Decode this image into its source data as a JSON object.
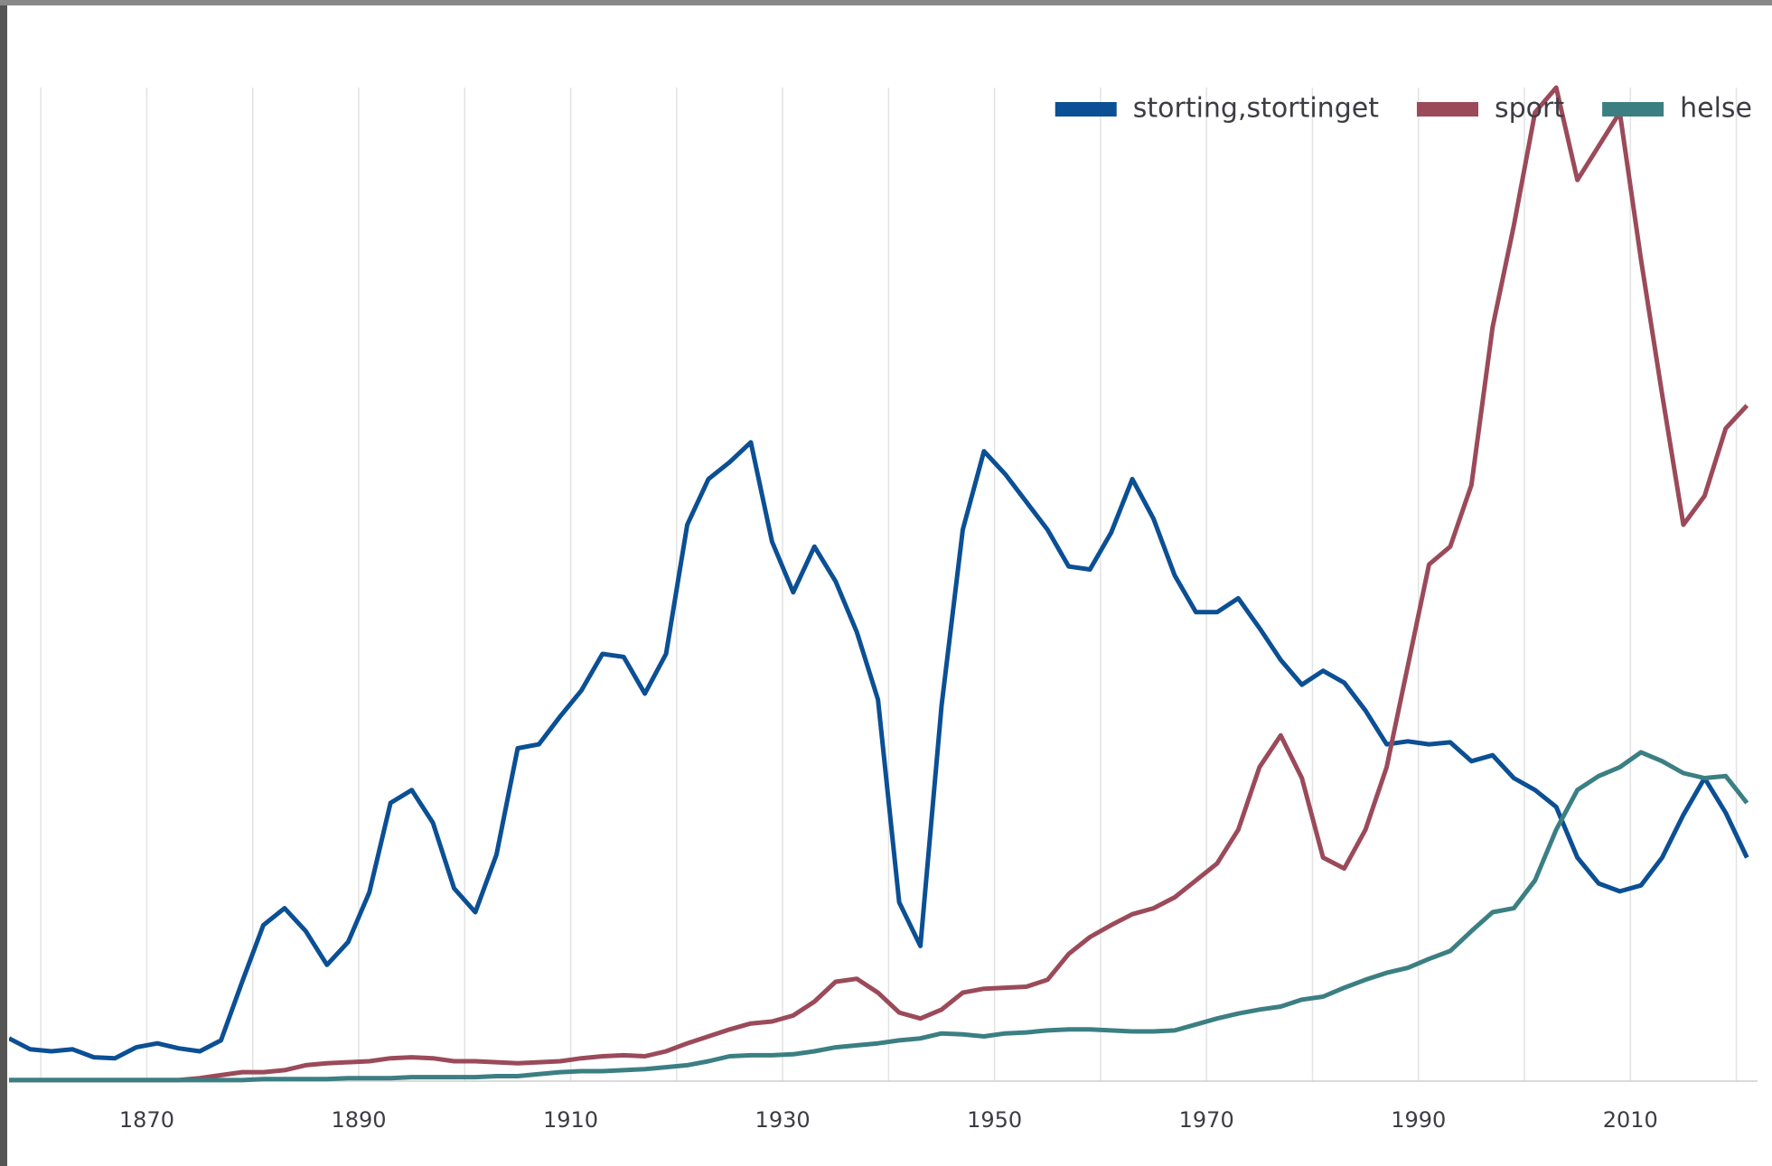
{
  "chart_data": {
    "type": "line",
    "x": [
      1857,
      1859,
      1861,
      1863,
      1865,
      1867,
      1869,
      1871,
      1873,
      1875,
      1877,
      1879,
      1881,
      1883,
      1885,
      1887,
      1889,
      1891,
      1893,
      1895,
      1897,
      1899,
      1901,
      1903,
      1905,
      1907,
      1909,
      1911,
      1913,
      1915,
      1917,
      1919,
      1921,
      1923,
      1925,
      1927,
      1929,
      1931,
      1933,
      1935,
      1937,
      1939,
      1941,
      1943,
      1945,
      1947,
      1949,
      1951,
      1953,
      1955,
      1957,
      1959,
      1961,
      1963,
      1965,
      1967,
      1969,
      1971,
      1973,
      1975,
      1977,
      1979,
      1981,
      1983,
      1985,
      1987,
      1989,
      1991,
      1993,
      1995,
      1997,
      1999,
      2001,
      2003,
      2005,
      2007,
      2009,
      2011,
      2013,
      2015,
      2017,
      2019,
      2021
    ],
    "series": [
      {
        "name": "storting,stortinget",
        "color": "#0b4f94",
        "values": [
          4.3,
          3.2,
          3.0,
          3.2,
          2.4,
          2.3,
          3.4,
          3.8,
          3.3,
          3.0,
          4.1,
          10,
          15.7,
          17.4,
          15.1,
          11.7,
          14,
          19,
          28,
          29.3,
          26,
          19.4,
          17,
          22.8,
          33.5,
          33.9,
          36.7,
          39.3,
          43,
          42.7,
          39,
          43,
          56,
          60.6,
          62.3,
          64.3,
          54.3,
          49.2,
          53.8,
          50.3,
          45.2,
          38.4,
          18,
          13.6,
          37.8,
          55.5,
          63.4,
          61.1,
          58.3,
          55.5,
          51.8,
          51.5,
          55.2,
          60.6,
          56.6,
          50.9,
          47.2,
          47.2,
          48.6,
          45.6,
          42.4,
          39.9,
          41.3,
          40.1,
          37.3,
          33.9,
          34.2,
          33.9,
          34.1,
          32.2,
          32.8,
          30.5,
          29.3,
          27.6,
          22.5,
          19.9,
          19.1,
          19.7,
          22.5,
          26.8,
          30.5,
          27,
          22.5
        ]
      },
      {
        "name": "sport",
        "color": "#9b4a5a",
        "values": [
          0.1,
          0.1,
          0.1,
          0.1,
          0.1,
          0.1,
          0.1,
          0.1,
          0.1,
          0.3,
          0.6,
          0.9,
          0.9,
          1.1,
          1.6,
          1.8,
          1.9,
          2.0,
          2.3,
          2.4,
          2.3,
          2.0,
          2.0,
          1.9,
          1.8,
          1.9,
          2.0,
          2.3,
          2.5,
          2.6,
          2.5,
          3.0,
          3.8,
          4.5,
          5.2,
          5.8,
          6.0,
          6.6,
          8.0,
          10.0,
          10.3,
          8.9,
          6.9,
          6.3,
          7.2,
          8.9,
          9.3,
          9.4,
          9.5,
          10.2,
          12.8,
          14.5,
          15.7,
          16.8,
          17.4,
          18.5,
          20.2,
          21.9,
          25.3,
          31.6,
          34.8,
          30.5,
          22.5,
          21.4,
          25.3,
          31.6,
          41.8,
          52,
          53.8,
          60,
          75.9,
          86.1,
          97.5,
          100,
          90.7,
          94.1,
          97.5,
          82.7,
          69.1,
          56,
          58.9,
          65.7,
          68
        ]
      },
      {
        "name": "helse",
        "color": "#3b7f83",
        "values": [
          0.1,
          0.1,
          0.1,
          0.1,
          0.1,
          0.1,
          0.1,
          0.1,
          0.1,
          0.1,
          0.1,
          0.1,
          0.2,
          0.2,
          0.2,
          0.2,
          0.3,
          0.3,
          0.3,
          0.4,
          0.4,
          0.4,
          0.4,
          0.5,
          0.5,
          0.7,
          0.9,
          1.0,
          1.0,
          1.1,
          1.2,
          1.4,
          1.6,
          2.0,
          2.5,
          2.6,
          2.6,
          2.7,
          3.0,
          3.4,
          3.6,
          3.8,
          4.1,
          4.3,
          4.8,
          4.7,
          4.5,
          4.8,
          4.9,
          5.1,
          5.2,
          5.2,
          5.1,
          5.0,
          5.0,
          5.1,
          5.7,
          6.3,
          6.8,
          7.2,
          7.5,
          8.2,
          8.5,
          9.4,
          10.2,
          10.9,
          11.4,
          12.3,
          13.1,
          15.1,
          17,
          17.4,
          20.2,
          25.3,
          29.3,
          30.7,
          31.6,
          33.1,
          32.2,
          31,
          30.5,
          30.7,
          28
        ]
      }
    ],
    "xlim": [
      1857,
      2022
    ],
    "xticks": [
      1870,
      1890,
      1910,
      1930,
      1950,
      1970,
      1990,
      2010
    ],
    "xminorticks": [
      1860,
      1880,
      1900,
      1920,
      1940,
      1960,
      1980,
      2000,
      2020
    ],
    "ylim": [
      0,
      100
    ],
    "grid": true,
    "legend": "top-right"
  }
}
